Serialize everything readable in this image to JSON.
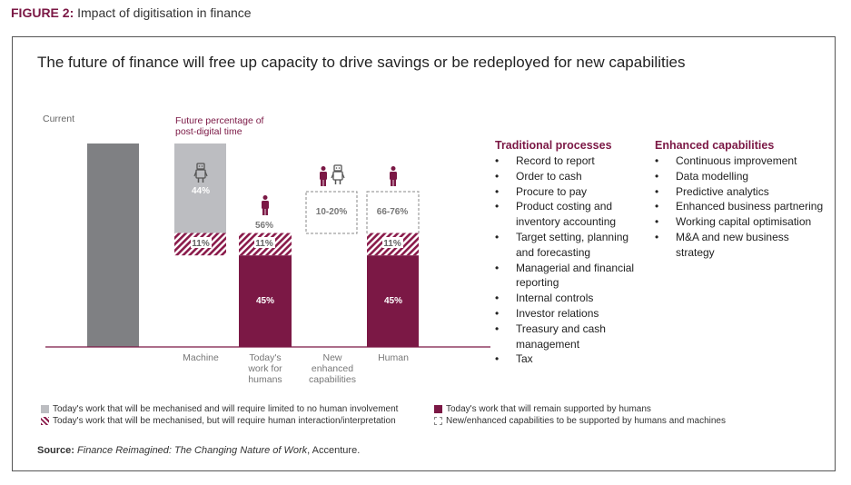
{
  "figure": {
    "label": "FIGURE 2:",
    "title": "Impact of digitisation in finance",
    "headline": "The future of finance will free up capacity to drive savings or be redeployed for new capabilities"
  },
  "chart_data": {
    "type": "bar",
    "categories": [
      "Current",
      "Machine",
      "Today's work for humans",
      "New enhanced capabilities",
      "Human"
    ],
    "category_labels": [
      "Machine",
      "Today's work for humans",
      "New enhanced capabilities",
      "Human"
    ],
    "current_label": "Current",
    "future_label": "Future percentage of post-digital time",
    "series": [
      {
        "name": "Today's work that will be mechanised and will require limited to no human involvement",
        "values": [
          null,
          44,
          null,
          null,
          null
        ]
      },
      {
        "name": "Today's work that will be mechanised, but will require human interaction/interpretation",
        "values": [
          null,
          11,
          11,
          null,
          11
        ]
      },
      {
        "name": "Today's work that will remain supported by humans",
        "values": [
          null,
          null,
          45,
          null,
          45
        ]
      },
      {
        "name": "New/enhanced capabilities to be supported by humans and machines",
        "values": [
          null,
          null,
          null,
          10,
          10
        ]
      }
    ],
    "current_value": 100,
    "data_labels": {
      "machine_top": "44%",
      "machine_hatch": "11%",
      "humans_total": "56%",
      "humans_hatch": "11%",
      "humans_solid": "45%",
      "new_range": "10-20%",
      "human_range": "66-76%",
      "human_hatch": "11%",
      "human_solid": "45%"
    },
    "colors": {
      "gray": "#bcbdc1",
      "current": "#7f8083",
      "maroon": "#7b1845"
    }
  },
  "traditional": {
    "heading": "Traditional processes",
    "items": [
      "Record to report",
      "Order to cash",
      "Procure to pay",
      "Product costing and inventory accounting",
      "Target setting, planning and forecasting",
      "Managerial and financial reporting",
      "Internal controls",
      "Investor relations",
      "Treasury and cash management",
      "Tax"
    ]
  },
  "enhanced": {
    "heading": "Enhanced capabilities",
    "items": [
      "Continuous improvement",
      "Data modelling",
      "Predictive analytics",
      "Enhanced business partnering",
      "Working capital optimisation",
      "M&A and new business strategy"
    ]
  },
  "legend": {
    "gray": "Today's work that will be mechanised and will require limited to no human involvement",
    "hatch": "Today's work that will be mechanised, but will require human interaction/interpretation",
    "maroon": "Today's work that will remain supported by humans",
    "dashed": "New/enhanced capabilities to be supported by humans and machines"
  },
  "source": {
    "label": "Source:",
    "text": "Finance Reimagined: The Changing Nature of Work",
    "suffix": ", Accenture."
  }
}
